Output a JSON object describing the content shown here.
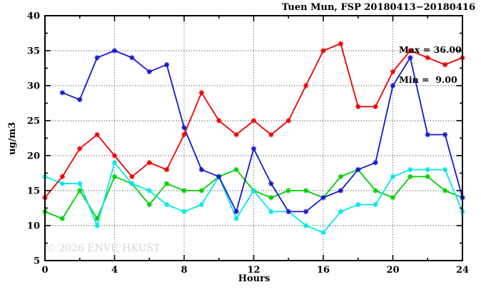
{
  "header": {
    "title": "Tuen Mun, FSP 20180413−20180416"
  },
  "stats": {
    "max_label": "Max = 36.00",
    "min_label": "Min =  9.00",
    "max_value": 36.0,
    "min_value": 9.0
  },
  "watermark": "© 2026 ENVF, HKUST",
  "chart_data": {
    "type": "line",
    "title": "Tuen Mun, FSP 20180413−20180416",
    "xlabel": "Hours",
    "ylabel": "ug/m3",
    "xlim": [
      0,
      24
    ],
    "ylim": [
      5,
      40
    ],
    "grid": "dotted",
    "legend_position": "none",
    "x_major_ticks": [
      0,
      4,
      8,
      12,
      16,
      20,
      24
    ],
    "x_minor_ticks": [
      2,
      6,
      10,
      14,
      18,
      22
    ],
    "y_major_ticks": [
      5,
      10,
      15,
      20,
      25,
      30,
      35,
      40
    ],
    "y_minor_ticks": [
      7.5,
      12.5,
      17.5,
      22.5,
      27.5,
      32.5,
      37.5
    ],
    "x_tick_labels": [
      "0",
      "4",
      "8",
      "12",
      "16",
      "20",
      "24"
    ],
    "y_tick_labels": [
      "5",
      "10",
      "15",
      "20",
      "25",
      "30",
      "35",
      "40"
    ],
    "grid_x": [
      4,
      8,
      12,
      16,
      20
    ],
    "grid_y": [
      10,
      15,
      20,
      25,
      30,
      35
    ],
    "marker": "asterisk",
    "series": [
      {
        "name": "green",
        "color": "#00cf00",
        "x": [
          0,
          1,
          2,
          3,
          4,
          5,
          6,
          7,
          8,
          9,
          10,
          11,
          12,
          13,
          14,
          15,
          16,
          17,
          18,
          19,
          20,
          21,
          22,
          23,
          24
        ],
        "values": [
          12,
          11,
          15,
          11,
          17,
          16,
          13,
          16,
          15,
          15,
          17,
          18,
          15,
          14,
          15,
          15,
          14,
          17,
          18,
          15,
          14,
          17,
          17,
          15,
          14
        ]
      },
      {
        "name": "cyan",
        "color": "#00e8e8",
        "x": [
          0,
          1,
          2,
          3,
          4,
          5,
          6,
          7,
          8,
          9,
          10,
          11,
          12,
          13,
          14,
          15,
          16,
          17,
          18,
          19,
          20,
          21,
          22,
          23,
          24
        ],
        "values": [
          17,
          16,
          16,
          10,
          19,
          16,
          15,
          13,
          12,
          13,
          17,
          11,
          15,
          12,
          12,
          10,
          9,
          12,
          13,
          13,
          17,
          18,
          18,
          18,
          12
        ]
      },
      {
        "name": "blue",
        "color": "#1717d2",
        "x": [
          1,
          2,
          3,
          4,
          5,
          6,
          7,
          8,
          9,
          10,
          11,
          12,
          13,
          14,
          15,
          16,
          17,
          18,
          19,
          20,
          21,
          22,
          23,
          24
        ],
        "values": [
          29,
          28,
          34,
          35,
          34,
          32,
          33,
          24,
          18,
          17,
          12,
          21,
          16,
          12,
          12,
          14,
          15,
          18,
          19,
          30,
          34,
          23,
          23,
          14
        ]
      },
      {
        "name": "red",
        "color": "#ee0000",
        "x": [
          0,
          1,
          2,
          3,
          4,
          5,
          6,
          7,
          8,
          9,
          10,
          11,
          12,
          13,
          14,
          15,
          16,
          17,
          18,
          19,
          20,
          21,
          22,
          23,
          24
        ],
        "values": [
          14,
          17,
          21,
          23,
          20,
          17,
          19,
          18,
          23,
          29,
          25,
          23,
          25,
          23,
          25,
          30,
          35,
          36,
          27,
          27,
          32,
          35,
          34,
          33,
          34
        ]
      }
    ],
    "colors": {
      "axis": "#000000",
      "grid": "#4a4a4a",
      "background": "#ffffff"
    }
  }
}
